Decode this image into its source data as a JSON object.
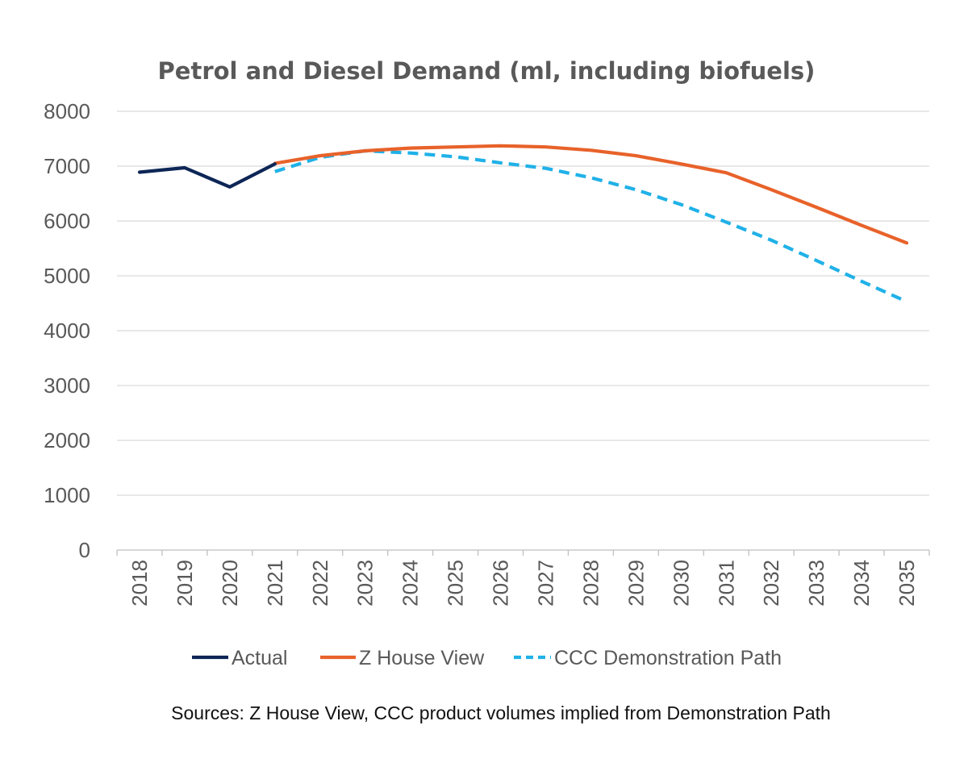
{
  "chart_data": {
    "type": "line",
    "title": "Petrol and Diesel Demand (ml, including biofuels)",
    "xlabel": "",
    "ylabel": "",
    "categories": [
      "2018",
      "2019",
      "2020",
      "2021",
      "2022",
      "2023",
      "2024",
      "2025",
      "2026",
      "2027",
      "2028",
      "2029",
      "2030",
      "2031",
      "2032",
      "2033",
      "2034",
      "2035"
    ],
    "ylim": [
      0,
      8000
    ],
    "yticks": [
      "0",
      "1000",
      "2000",
      "3000",
      "4000",
      "5000",
      "6000",
      "7000",
      "8000"
    ],
    "grid": "horizontal",
    "legend_position": "bottom",
    "series": [
      {
        "name": "Actual",
        "color": "#0d2656",
        "dash": "solid",
        "values": [
          6890,
          6970,
          6620,
          7040,
          null,
          null,
          null,
          null,
          null,
          null,
          null,
          null,
          null,
          null,
          null,
          null,
          null,
          null
        ]
      },
      {
        "name": "Z House View",
        "color": "#e8622a",
        "dash": "solid",
        "values": [
          null,
          null,
          null,
          7050,
          7190,
          7280,
          7330,
          7350,
          7370,
          7350,
          7290,
          7190,
          7040,
          6880,
          6570,
          6250,
          5920,
          5600
        ]
      },
      {
        "name": "CCC Demonstration Path",
        "color": "#20b1e8",
        "dash": "dashed",
        "values": [
          null,
          null,
          null,
          6900,
          7160,
          7280,
          7240,
          7170,
          7060,
          6960,
          6790,
          6570,
          6300,
          5980,
          5650,
          5280,
          4900,
          4530
        ]
      }
    ],
    "source_note": "Sources: Z House View, CCC product volumes implied from Demonstration Path"
  }
}
